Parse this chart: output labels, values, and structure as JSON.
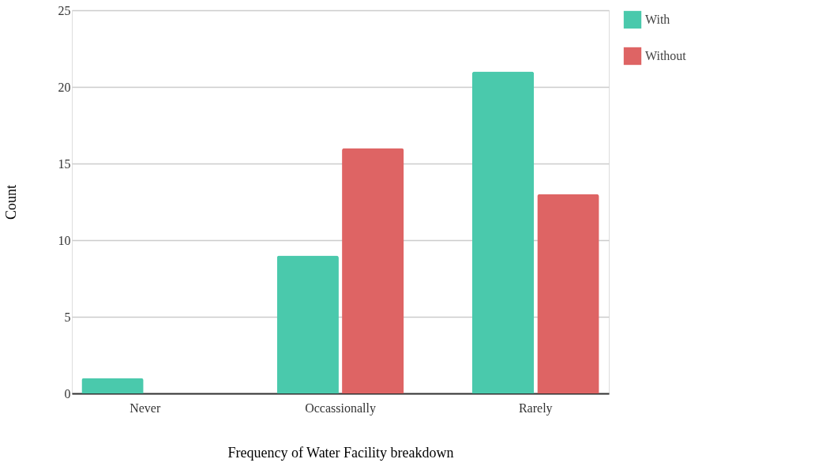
{
  "chart_data": {
    "type": "bar",
    "xlabel": "Frequency of Water Facility breakdown",
    "ylabel": "Count",
    "categories": [
      "Never",
      "Occassionally",
      "Rarely"
    ],
    "series": [
      {
        "name": "With",
        "color": "#4ac9ac",
        "values": [
          1,
          9,
          21
        ]
      },
      {
        "name": "Without",
        "color": "#de6464",
        "values": [
          0,
          16,
          13
        ]
      }
    ],
    "ylim": [
      0,
      25
    ],
    "yticks": [
      0,
      5,
      10,
      15,
      20,
      25
    ],
    "grid": "y",
    "legend": "top right"
  }
}
